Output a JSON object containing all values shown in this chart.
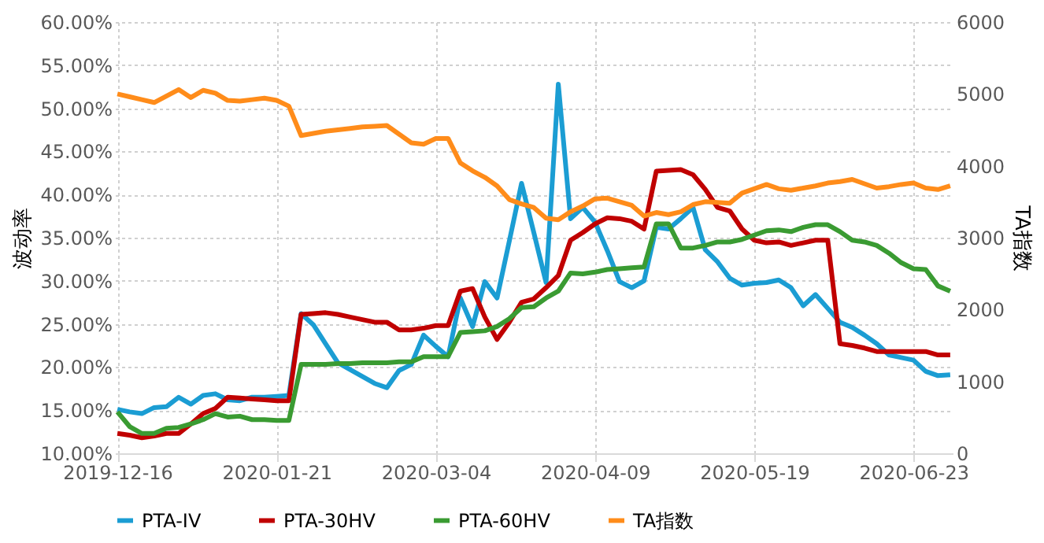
{
  "chart_data": {
    "type": "line",
    "ylabel": "波动率",
    "y2label": "TA指数",
    "categories": [
      "2019-12-16",
      null,
      null,
      null,
      null,
      null,
      null,
      null,
      null,
      null,
      null,
      null,
      null,
      "2020-01-21",
      null,
      null,
      null,
      null,
      null,
      null,
      null,
      null,
      null,
      null,
      null,
      null,
      "2020-03-04",
      null,
      null,
      null,
      null,
      null,
      null,
      null,
      null,
      null,
      null,
      null,
      null,
      "2020-04-09",
      null,
      null,
      null,
      null,
      null,
      null,
      null,
      null,
      null,
      null,
      null,
      null,
      "2020-05-19",
      null,
      null,
      null,
      null,
      null,
      null,
      null,
      null,
      null,
      null,
      null,
      null,
      "2020-06-23",
      null,
      null,
      null
    ],
    "ylim": [
      10,
      60
    ],
    "yticks": [
      {
        "value": 10,
        "label": "10.00%"
      },
      {
        "value": 15,
        "label": "15.00%"
      },
      {
        "value": 20,
        "label": "20.00%"
      },
      {
        "value": 25,
        "label": "25.00%"
      },
      {
        "value": 30,
        "label": "30.00%"
      },
      {
        "value": 35,
        "label": "35.00%"
      },
      {
        "value": 40,
        "label": "40.00%"
      },
      {
        "value": 45,
        "label": "45.00%"
      },
      {
        "value": 50,
        "label": "50.00%"
      },
      {
        "value": 55,
        "label": "55.00%"
      },
      {
        "value": 60,
        "label": "60.00%"
      }
    ],
    "y2lim": [
      0,
      6000
    ],
    "y2ticks": [
      0,
      1000,
      2000,
      3000,
      4000,
      5000,
      6000
    ],
    "grid": true,
    "legend": "bottom",
    "marker": "none",
    "line_style": "solid",
    "series": [
      {
        "name": "PTA-IV",
        "color": "#1b9dd3",
        "values": [
          15.1,
          14.8,
          14.6,
          15.3,
          15.4,
          16.5,
          15.7,
          16.7,
          16.9,
          16.2,
          16.1,
          16.5,
          16.5,
          16.6,
          16.7,
          26.2,
          24.9,
          22.7,
          20.5,
          19.7,
          18.9,
          18.1,
          17.6,
          19.6,
          20.3,
          23.7,
          22.4,
          21.2,
          28.0,
          24.7,
          29.9,
          28.0,
          34.6,
          41.3,
          35.6,
          29.8,
          52.8,
          37.2,
          38.5,
          36.8,
          33.5,
          29.9,
          29.2,
          30.0,
          36.2,
          36.0,
          37.2,
          38.5,
          33.6,
          32.2,
          30.3,
          29.5,
          29.7,
          29.8,
          30.1,
          29.2,
          27.1,
          28.4,
          26.8,
          25.2,
          24.6,
          23.7,
          22.7,
          21.4,
          21.1,
          20.8,
          19.5,
          19.0,
          19.1
        ]
      },
      {
        "name": "PTA-30HV",
        "color": "#c00000",
        "values": [
          12.3,
          12.1,
          11.8,
          12.0,
          12.3,
          12.3,
          13.4,
          14.6,
          15.2,
          16.5,
          16.4,
          16.3,
          16.2,
          16.1,
          16.1,
          26.1,
          26.2,
          26.3,
          26.1,
          25.8,
          25.5,
          25.2,
          25.2,
          24.3,
          24.3,
          24.5,
          24.8,
          24.8,
          28.8,
          29.1,
          25.8,
          23.2,
          25.2,
          27.5,
          27.9,
          29.2,
          30.6,
          34.7,
          35.6,
          36.6,
          37.3,
          37.2,
          36.9,
          36.0,
          42.7,
          42.8,
          42.9,
          42.3,
          40.6,
          38.5,
          38.1,
          36.0,
          34.7,
          34.4,
          34.5,
          34.1,
          34.4,
          34.7,
          34.7,
          22.7,
          22.5,
          22.2,
          21.8,
          21.8,
          21.8,
          21.8,
          21.8,
          21.4,
          21.4
        ]
      },
      {
        "name": "PTA-60HV",
        "color": "#3a9b32",
        "values": [
          14.8,
          13.1,
          12.3,
          12.3,
          12.9,
          13.0,
          13.4,
          13.9,
          14.6,
          14.2,
          14.3,
          13.9,
          13.9,
          13.8,
          13.8,
          20.3,
          20.3,
          20.3,
          20.4,
          20.4,
          20.5,
          20.5,
          20.5,
          20.6,
          20.6,
          21.2,
          21.2,
          21.2,
          24.0,
          24.1,
          24.2,
          24.7,
          25.6,
          26.9,
          27.0,
          28.0,
          28.8,
          30.9,
          30.8,
          31.0,
          31.3,
          31.4,
          31.5,
          31.6,
          36.6,
          36.6,
          33.8,
          33.8,
          34.1,
          34.5,
          34.5,
          34.8,
          35.3,
          35.8,
          35.9,
          35.7,
          36.2,
          36.5,
          36.5,
          35.7,
          34.7,
          34.5,
          34.1,
          33.2,
          32.1,
          31.4,
          31.3,
          29.4,
          28.8
        ]
      },
      {
        "name": "TA指数",
        "color": "#ff8c1a",
        "axis": "y2",
        "values": [
          5000,
          4960,
          4920,
          4880,
          4970,
          5060,
          4950,
          5050,
          5010,
          4910,
          4900,
          4920,
          4940,
          4910,
          4830,
          4420,
          4450,
          4480,
          4500,
          4520,
          4540,
          4550,
          4560,
          4440,
          4320,
          4300,
          4380,
          4380,
          4040,
          3930,
          3840,
          3720,
          3530,
          3470,
          3420,
          3270,
          3250,
          3360,
          3440,
          3540,
          3550,
          3500,
          3450,
          3300,
          3350,
          3320,
          3360,
          3460,
          3500,
          3490,
          3480,
          3620,
          3680,
          3740,
          3680,
          3660,
          3690,
          3720,
          3760,
          3780,
          3810,
          3750,
          3690,
          3710,
          3740,
          3760,
          3690,
          3670,
          3720
        ]
      }
    ]
  }
}
